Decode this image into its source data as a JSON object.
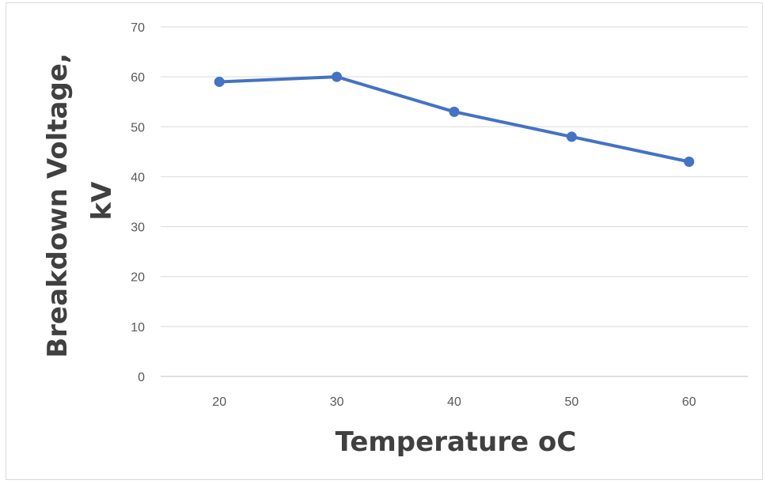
{
  "chart_data": {
    "type": "line",
    "title": "",
    "xlabel": "Temperature oC",
    "ylabel_lines": [
      "Breakdown Voltage,",
      "kV"
    ],
    "x": [
      20,
      30,
      40,
      50,
      60
    ],
    "series": [
      {
        "values": [
          59,
          60,
          53,
          48,
          43
        ],
        "color": "#4472c4"
      }
    ],
    "ylim": [
      0,
      70
    ],
    "yticks": [
      0,
      10,
      20,
      30,
      40,
      50,
      60,
      70
    ],
    "grid": true,
    "legend": "none"
  }
}
